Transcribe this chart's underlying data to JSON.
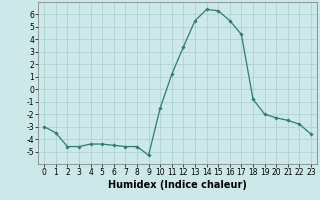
{
  "x": [
    0,
    1,
    2,
    3,
    4,
    5,
    6,
    7,
    8,
    9,
    10,
    11,
    12,
    13,
    14,
    15,
    16,
    17,
    18,
    19,
    20,
    21,
    22,
    23
  ],
  "y": [
    -3,
    -3.5,
    -4.6,
    -4.6,
    -4.4,
    -4.4,
    -4.5,
    -4.6,
    -4.6,
    -5.3,
    -1.5,
    1.2,
    3.4,
    5.5,
    6.4,
    6.3,
    5.5,
    4.4,
    -0.8,
    -2.0,
    -2.3,
    -2.5,
    -2.8,
    -3.6
  ],
  "line_color": "#2e7d6e",
  "marker": "D",
  "marker_size": 1.8,
  "line_width": 0.9,
  "bg_color": "#cce8e8",
  "grid_color": "#aacece",
  "xlabel": "Humidex (Indice chaleur)",
  "xlim": [
    -0.5,
    23.5
  ],
  "ylim": [
    -6,
    7
  ],
  "yticks": [
    -5,
    -4,
    -3,
    -2,
    -1,
    0,
    1,
    2,
    3,
    4,
    5,
    6
  ],
  "xticks": [
    0,
    1,
    2,
    3,
    4,
    5,
    6,
    7,
    8,
    9,
    10,
    11,
    12,
    13,
    14,
    15,
    16,
    17,
    18,
    19,
    20,
    21,
    22,
    23
  ],
  "xlabel_fontsize": 7,
  "tick_fontsize": 5.5
}
